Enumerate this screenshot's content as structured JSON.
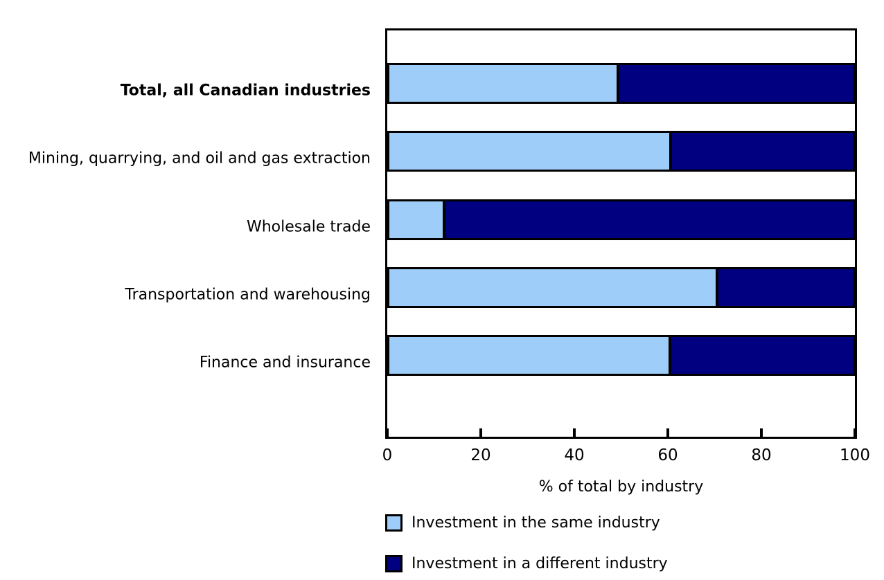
{
  "chart_data": {
    "type": "bar",
    "orientation": "horizontal",
    "stacked": true,
    "title": "",
    "categories": [
      "Total, all Canadian industries",
      "Mining, quarrying, and oil and gas extraction",
      "Wholesale trade",
      "Transportation and warehousing",
      "Finance and insurance"
    ],
    "categories_bold": [
      true,
      false,
      false,
      false,
      false
    ],
    "series": [
      {
        "name": "Investment in the same industry",
        "color": "#9DCDF8",
        "values": [
          49.5,
          60.7,
          12.3,
          70.6,
          60.6
        ]
      },
      {
        "name": "Investment in a different industry",
        "color": "#000080",
        "values": [
          50.5,
          39.3,
          87.7,
          29.4,
          39.4
        ]
      }
    ],
    "xlabel": "% of total by industry",
    "xlim": [
      0,
      100
    ],
    "xticks": [
      0,
      20,
      40,
      60,
      80,
      100
    ],
    "grid": false,
    "legend_position": "bottom-left",
    "bar_border_color": "#000000",
    "axis_color": "#000000",
    "background": "#FFFFFF"
  }
}
